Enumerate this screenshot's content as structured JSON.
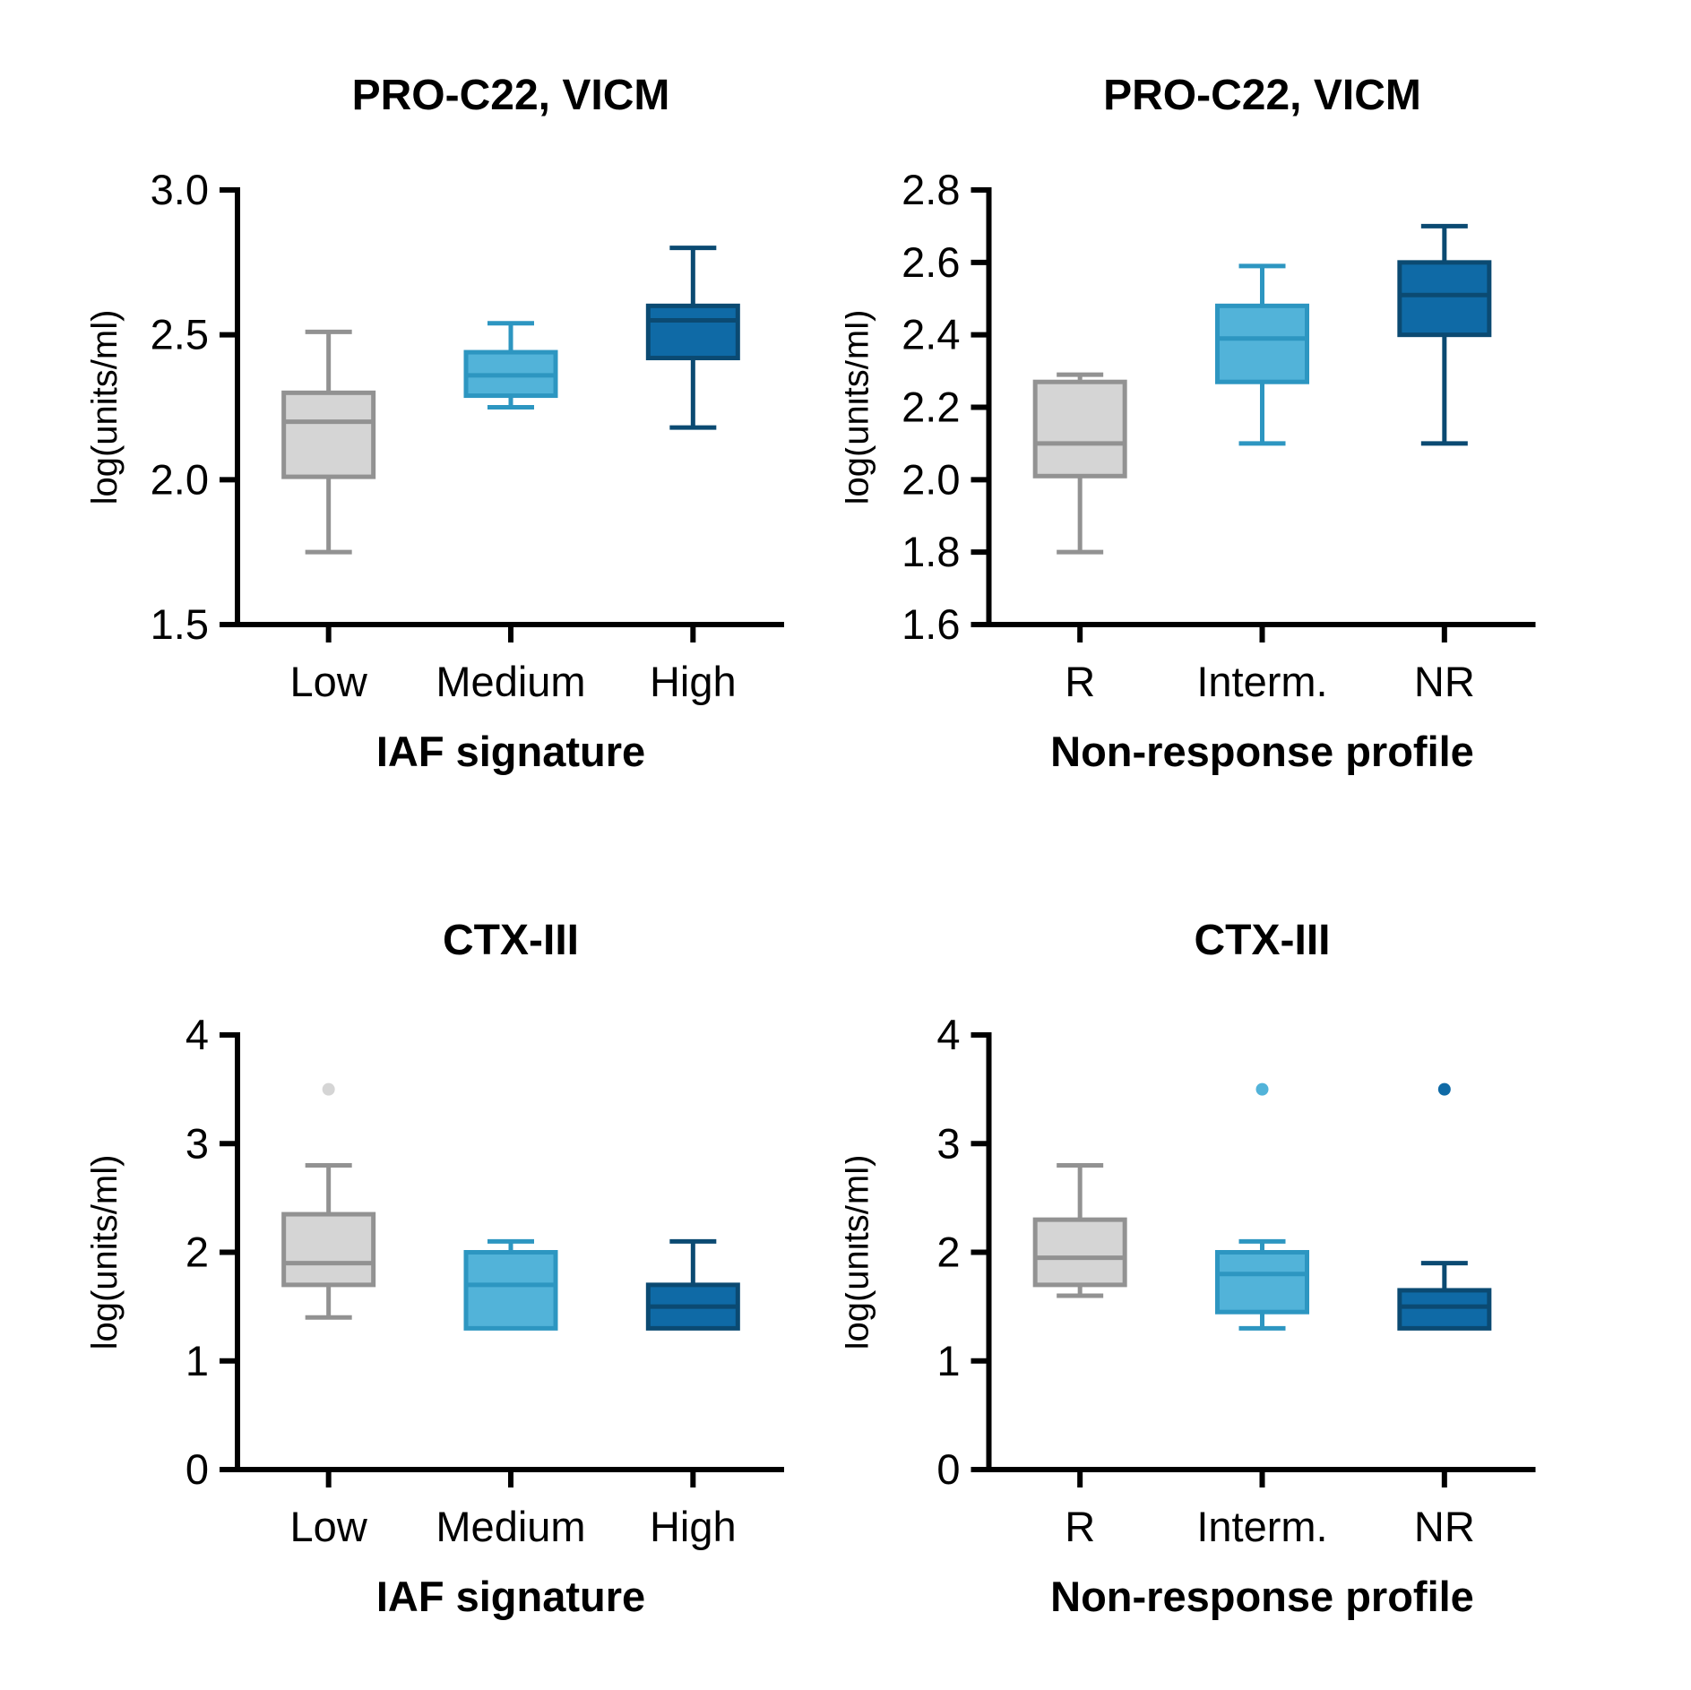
{
  "figure": {
    "background": "#ffffff",
    "text_color": "#000000",
    "axis_color": "#000000"
  },
  "palette": {
    "gray": {
      "fill": "#d5d5d5",
      "stroke": "#929292"
    },
    "lightblue": {
      "fill": "#52b3d9",
      "stroke": "#2d96c1"
    },
    "darkblue": {
      "fill": "#0f6aa6",
      "stroke": "#0b4a72"
    }
  },
  "layout_hints": {
    "grid": "2x2",
    "legend": "none",
    "gridlines": "off",
    "style": "prism-box-whisker"
  },
  "chart_data": [
    {
      "id": "pro-c22-vicm-iaf",
      "type": "box",
      "title": "PRO-C22, VICM",
      "xlabel": "IAF signature",
      "ylabel": "log(units/ml)",
      "ylim": [
        1.5,
        3.0
      ],
      "yticks": [
        {
          "value": 1.5,
          "label": "1.5"
        },
        {
          "value": 2.0,
          "label": "2.0"
        },
        {
          "value": 2.5,
          "label": "2.5"
        },
        {
          "value": 3.0,
          "label": "3.0"
        }
      ],
      "categories": [
        "Low",
        "Medium",
        "High"
      ],
      "series": [
        {
          "category": "Low",
          "color": "gray",
          "whisker_low": 1.75,
          "q1": 2.01,
          "median": 2.2,
          "q3": 2.3,
          "whisker_high": 2.51,
          "outliers": []
        },
        {
          "category": "Medium",
          "color": "lightblue",
          "whisker_low": 2.25,
          "q1": 2.29,
          "median": 2.36,
          "q3": 2.44,
          "whisker_high": 2.54,
          "outliers": []
        },
        {
          "category": "High",
          "color": "darkblue",
          "whisker_low": 2.18,
          "q1": 2.42,
          "median": 2.55,
          "q3": 2.6,
          "whisker_high": 2.8,
          "outliers": []
        }
      ]
    },
    {
      "id": "pro-c22-vicm-nonresponse",
      "type": "box",
      "title": "PRO-C22, VICM",
      "xlabel": "Non-response profile",
      "ylabel": "log(units/ml)",
      "ylim": [
        1.6,
        2.8
      ],
      "yticks": [
        {
          "value": 1.6,
          "label": "1.6"
        },
        {
          "value": 1.8,
          "label": "1.8"
        },
        {
          "value": 2.0,
          "label": "2.0"
        },
        {
          "value": 2.2,
          "label": "2.2"
        },
        {
          "value": 2.4,
          "label": "2.4"
        },
        {
          "value": 2.6,
          "label": "2.6"
        },
        {
          "value": 2.8,
          "label": "2.8"
        }
      ],
      "categories": [
        "R",
        "Interm.",
        "NR"
      ],
      "series": [
        {
          "category": "R",
          "color": "gray",
          "whisker_low": 1.8,
          "q1": 2.01,
          "median": 2.1,
          "q3": 2.27,
          "whisker_high": 2.29,
          "outliers": []
        },
        {
          "category": "Interm.",
          "color": "lightblue",
          "whisker_low": 2.1,
          "q1": 2.27,
          "median": 2.39,
          "q3": 2.48,
          "whisker_high": 2.59,
          "outliers": []
        },
        {
          "category": "NR",
          "color": "darkblue",
          "whisker_low": 2.1,
          "q1": 2.4,
          "median": 2.51,
          "q3": 2.6,
          "whisker_high": 2.7,
          "outliers": []
        }
      ]
    },
    {
      "id": "ctx-iii-iaf",
      "type": "box",
      "title": "CTX-III",
      "xlabel": "IAF signature",
      "ylabel": "log(units/ml)",
      "ylim": [
        0,
        4
      ],
      "yticks": [
        {
          "value": 0,
          "label": "0"
        },
        {
          "value": 1,
          "label": "1"
        },
        {
          "value": 2,
          "label": "2"
        },
        {
          "value": 3,
          "label": "3"
        },
        {
          "value": 4,
          "label": "4"
        }
      ],
      "categories": [
        "Low",
        "Medium",
        "High"
      ],
      "series": [
        {
          "category": "Low",
          "color": "gray",
          "whisker_low": 1.4,
          "q1": 1.7,
          "median": 1.9,
          "q3": 2.35,
          "whisker_high": 2.8,
          "outliers": [
            3.5
          ]
        },
        {
          "category": "Medium",
          "color": "lightblue",
          "whisker_low": 1.3,
          "q1": 1.3,
          "median": 1.7,
          "q3": 2.0,
          "whisker_high": 2.1,
          "outliers": []
        },
        {
          "category": "High",
          "color": "darkblue",
          "whisker_low": 1.3,
          "q1": 1.3,
          "median": 1.5,
          "q3": 1.7,
          "whisker_high": 2.1,
          "outliers": []
        }
      ]
    },
    {
      "id": "ctx-iii-nonresponse",
      "type": "box",
      "title": "CTX-III",
      "xlabel": "Non-response profile",
      "ylabel": "log(units/ml)",
      "ylim": [
        0,
        4
      ],
      "yticks": [
        {
          "value": 0,
          "label": "0"
        },
        {
          "value": 1,
          "label": "1"
        },
        {
          "value": 2,
          "label": "2"
        },
        {
          "value": 3,
          "label": "3"
        },
        {
          "value": 4,
          "label": "4"
        }
      ],
      "categories": [
        "R",
        "Interm.",
        "NR"
      ],
      "series": [
        {
          "category": "R",
          "color": "gray",
          "whisker_low": 1.6,
          "q1": 1.7,
          "median": 1.95,
          "q3": 2.3,
          "whisker_high": 2.8,
          "outliers": []
        },
        {
          "category": "Interm.",
          "color": "lightblue",
          "whisker_low": 1.3,
          "q1": 1.45,
          "median": 1.8,
          "q3": 2.0,
          "whisker_high": 2.1,
          "outliers": [
            3.5
          ]
        },
        {
          "category": "NR",
          "color": "darkblue",
          "whisker_low": 1.3,
          "q1": 1.3,
          "median": 1.5,
          "q3": 1.65,
          "whisker_high": 1.9,
          "outliers": [
            3.5
          ]
        }
      ]
    }
  ]
}
